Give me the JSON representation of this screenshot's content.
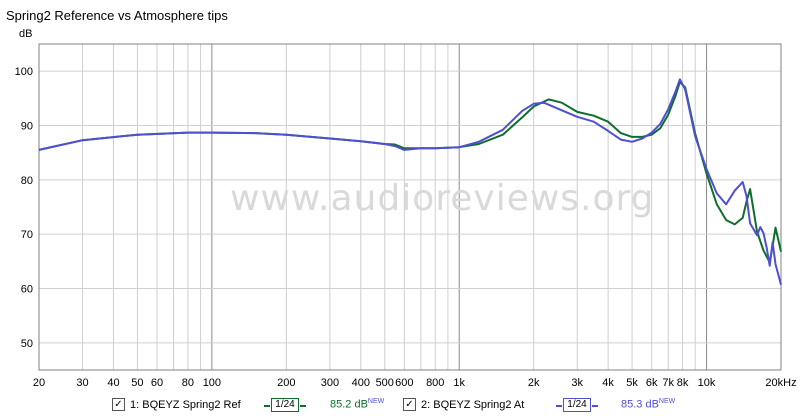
{
  "chart_data": {
    "type": "line",
    "title": "Spring2 Reference vs Atmosphere tips",
    "ylabel": "dB",
    "xlabel": "",
    "x_scale": "log",
    "xlim": [
      20,
      20000
    ],
    "ylim": [
      45,
      105
    ],
    "grid": true,
    "y_ticks": [
      50,
      60,
      70,
      80,
      90,
      100
    ],
    "x_ticks": [
      {
        "v": 20,
        "label": "20"
      },
      {
        "v": 30,
        "label": "30"
      },
      {
        "v": 40,
        "label": "40"
      },
      {
        "v": 50,
        "label": "50"
      },
      {
        "v": 60,
        "label": "60"
      },
      {
        "v": 80,
        "label": "80"
      },
      {
        "v": 100,
        "label": "100"
      },
      {
        "v": 200,
        "label": "200"
      },
      {
        "v": 300,
        "label": "300"
      },
      {
        "v": 400,
        "label": "400"
      },
      {
        "v": 500,
        "label": "500"
      },
      {
        "v": 600,
        "label": "600"
      },
      {
        "v": 800,
        "label": "800"
      },
      {
        "v": 1000,
        "label": "1k"
      },
      {
        "v": 2000,
        "label": "2k"
      },
      {
        "v": 3000,
        "label": "3k"
      },
      {
        "v": 4000,
        "label": "4k"
      },
      {
        "v": 5000,
        "label": "5k"
      },
      {
        "v": 6000,
        "label": "6k"
      },
      {
        "v": 7000,
        "label": "7k"
      },
      {
        "v": 8000,
        "label": "8k"
      },
      {
        "v": 10000,
        "label": "10k"
      },
      {
        "v": 20000,
        "label": "20kHz"
      }
    ],
    "series": [
      {
        "name": "1: BQEYZ Spring2 Ref",
        "color": "#0f6e2c",
        "x": [
          20,
          30,
          50,
          80,
          100,
          150,
          200,
          300,
          400,
          500,
          550,
          600,
          700,
          800,
          1000,
          1200,
          1500,
          1800,
          2000,
          2300,
          2600,
          3000,
          3500,
          4000,
          4500,
          5000,
          5500,
          6000,
          6500,
          7000,
          7500,
          7800,
          8200,
          9000,
          10000,
          11000,
          12000,
          13000,
          14000,
          14500,
          15000,
          16000,
          17000,
          18000,
          18500,
          19000,
          20000
        ],
        "y": [
          85.5,
          87.3,
          88.3,
          88.7,
          88.7,
          88.6,
          88.3,
          87.6,
          87.1,
          86.6,
          86.5,
          85.8,
          85.8,
          85.8,
          86.0,
          86.6,
          88.3,
          91.5,
          93.5,
          94.8,
          94.2,
          92.5,
          91.8,
          90.7,
          88.6,
          87.9,
          87.9,
          88.3,
          89.5,
          92.0,
          95.5,
          98.0,
          97.0,
          88.5,
          81.2,
          75.5,
          72.6,
          71.8,
          73.0,
          76.0,
          78.3,
          70.5,
          67.0,
          64.8,
          67.8,
          71.2,
          66.8
        ]
      },
      {
        "name": "2: BQEYZ Spring2 At",
        "color": "#4f4fd0",
        "x": [
          20,
          30,
          50,
          80,
          100,
          150,
          200,
          300,
          400,
          500,
          550,
          600,
          700,
          800,
          1000,
          1200,
          1500,
          1800,
          2000,
          2200,
          2600,
          3000,
          3500,
          4000,
          4500,
          5000,
          5500,
          6000,
          6500,
          7000,
          7500,
          7800,
          8200,
          9000,
          10000,
          11000,
          12000,
          13000,
          14000,
          14500,
          15000,
          16000,
          16500,
          17000,
          17500,
          18000,
          18500,
          19000,
          20000
        ],
        "y": [
          85.5,
          87.3,
          88.3,
          88.7,
          88.7,
          88.6,
          88.3,
          87.6,
          87.1,
          86.6,
          86.2,
          85.5,
          85.8,
          85.8,
          86.0,
          87.0,
          89.2,
          92.7,
          94.0,
          94.2,
          92.8,
          91.6,
          90.7,
          89.0,
          87.4,
          87.0,
          87.6,
          88.7,
          90.3,
          93.0,
          96.3,
          98.5,
          96.6,
          88.0,
          82.0,
          77.5,
          75.5,
          78.0,
          79.6,
          77.0,
          72.0,
          69.8,
          71.3,
          70.2,
          67.5,
          64.2,
          68.5,
          64.5,
          60.7
        ]
      }
    ]
  },
  "watermark": "www.audioreviews.org",
  "legend": [
    {
      "check": "✓",
      "label": "1: BQEYZ Spring2 Ref",
      "smoothing": "1/24",
      "level": "85.2 dB",
      "tag": "NEW",
      "color": "#0f6e2c"
    },
    {
      "check": "✓",
      "label": "2: BQEYZ Spring2 At",
      "smoothing": "1/24",
      "level": "85.3 dB",
      "tag": "NEW",
      "color": "#4f4fd0"
    }
  ]
}
